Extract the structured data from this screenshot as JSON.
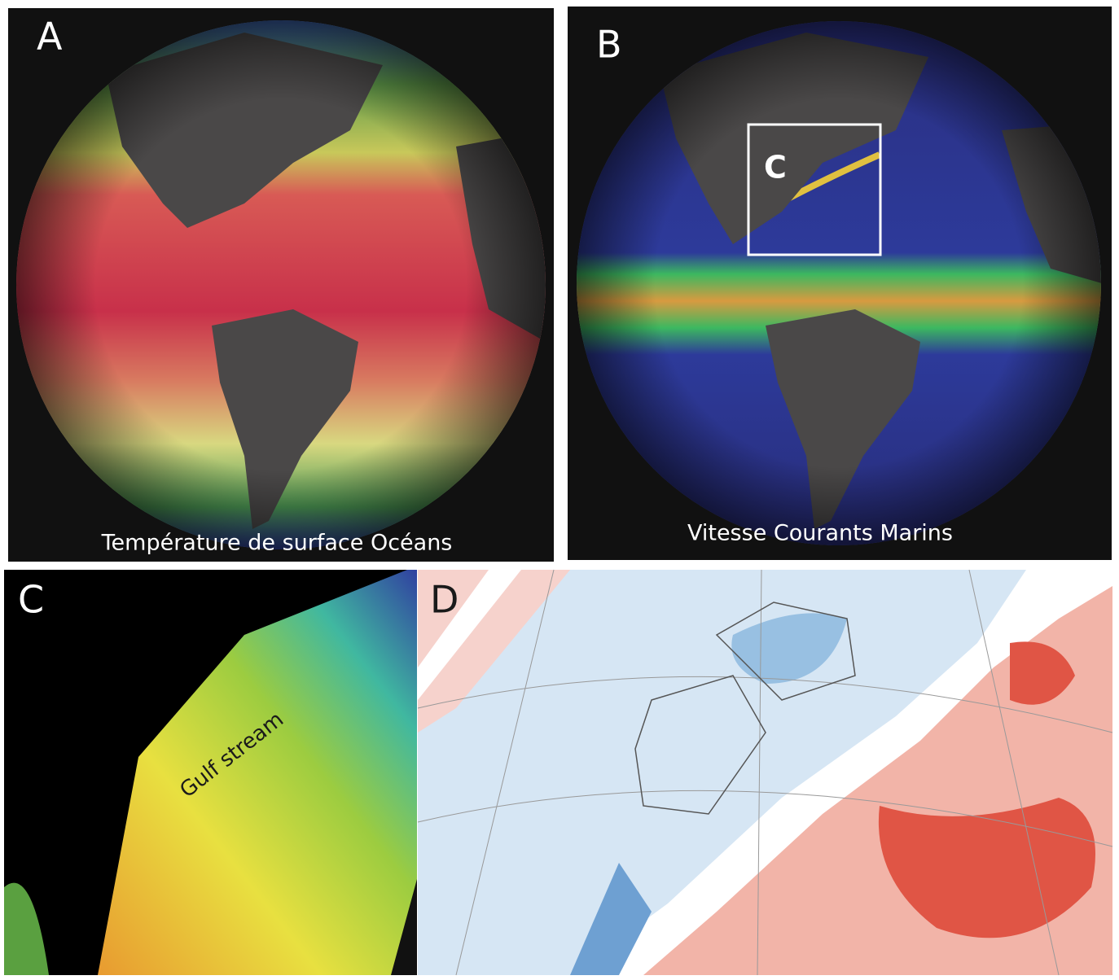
{
  "panels": [
    {
      "letter": "A",
      "caption": "Température de surface Océans"
    },
    {
      "letter": "B",
      "caption": "Vitesse Courants Marins",
      "inset_label": "C"
    },
    {
      "letter": "C",
      "annotation": "Gulf stream"
    },
    {
      "letter": "D"
    }
  ]
}
